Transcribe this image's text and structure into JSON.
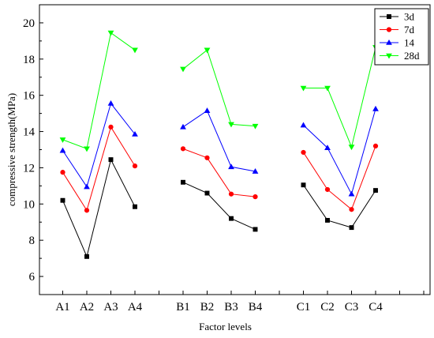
{
  "chart_data": {
    "type": "line",
    "xlabel": "Factor levels",
    "ylabel": "compressive strength(MPa)",
    "ylim": [
      5,
      21
    ],
    "yticks": [
      6,
      8,
      10,
      12,
      14,
      16,
      18,
      20
    ],
    "legend_position": "top-right",
    "groups": [
      {
        "categories": [
          "A1",
          "A2",
          "A3",
          "A4"
        ]
      },
      {
        "categories": [
          "B1",
          "B2",
          "B3",
          "B4"
        ]
      },
      {
        "categories": [
          "C1",
          "C2",
          "C3",
          "C4"
        ]
      }
    ],
    "series": [
      {
        "name": "3d",
        "color": "#000000",
        "marker": "square",
        "values": [
          10.2,
          7.1,
          12.45,
          9.85,
          11.2,
          10.6,
          9.2,
          8.6,
          11.05,
          9.1,
          8.7,
          10.75
        ]
      },
      {
        "name": "7d",
        "color": "#ff0000",
        "marker": "circle",
        "values": [
          11.75,
          9.65,
          14.25,
          12.1,
          13.05,
          12.55,
          10.55,
          10.4,
          12.85,
          10.8,
          9.7,
          13.2
        ]
      },
      {
        "name": "14",
        "color": "#0000ff",
        "marker": "triangle-up",
        "values": [
          12.95,
          10.95,
          15.55,
          13.85,
          14.25,
          15.15,
          12.05,
          11.8,
          14.35,
          13.1,
          10.55,
          15.25
        ]
      },
      {
        "name": "28d",
        "color": "#00ff00",
        "marker": "triangle-down",
        "values": [
          13.55,
          13.05,
          19.45,
          18.5,
          17.45,
          18.5,
          14.4,
          14.3,
          16.4,
          16.4,
          13.15,
          18.65
        ]
      }
    ]
  }
}
